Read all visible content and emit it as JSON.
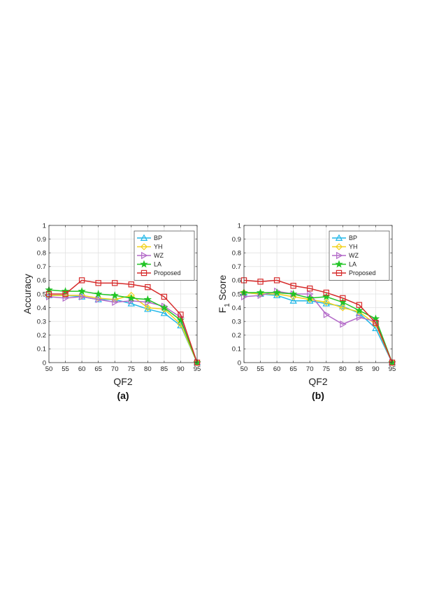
{
  "chart_data": [
    {
      "type": "line",
      "caption": "(a)",
      "xlabel": "QF2",
      "ylabel": "Accuracy",
      "x": [
        50,
        55,
        60,
        65,
        70,
        75,
        80,
        85,
        90,
        95
      ],
      "xticks": [
        "50",
        "55",
        "60",
        "65",
        "70",
        "75",
        "80",
        "85",
        "90",
        "95"
      ],
      "yticks": [
        "0",
        "0.1",
        "0.2",
        "0.3",
        "0.4",
        "0.5",
        "0.6",
        "0.7",
        "0.8",
        "0.9",
        "1"
      ],
      "xlim": [
        50,
        95
      ],
      "ylim": [
        0,
        1
      ],
      "grid": true,
      "legend_position": "top-right",
      "series": [
        {
          "name": "BP",
          "color": "#1fb6e8",
          "marker": "triangle-up",
          "values": [
            0.49,
            0.49,
            0.48,
            0.46,
            0.46,
            0.43,
            0.39,
            0.36,
            0.27,
            0.0
          ]
        },
        {
          "name": "YH",
          "color": "#f2d21b",
          "marker": "diamond",
          "values": [
            0.49,
            0.49,
            0.49,
            0.47,
            0.46,
            0.49,
            0.4,
            0.39,
            0.28,
            0.0
          ]
        },
        {
          "name": "WZ",
          "color": "#b36ac8",
          "marker": "triangle-right",
          "values": [
            0.48,
            0.47,
            0.48,
            0.46,
            0.44,
            0.45,
            0.44,
            0.41,
            0.33,
            0.0
          ]
        },
        {
          "name": "LA",
          "color": "#21c425",
          "marker": "star",
          "values": [
            0.53,
            0.52,
            0.52,
            0.5,
            0.49,
            0.47,
            0.46,
            0.4,
            0.31,
            0.0
          ]
        },
        {
          "name": "Proposed",
          "color": "#d62b2b",
          "marker": "square",
          "values": [
            0.5,
            0.5,
            0.6,
            0.58,
            0.58,
            0.57,
            0.55,
            0.48,
            0.35,
            0.0
          ]
        }
      ]
    },
    {
      "type": "line",
      "caption": "(b)",
      "xlabel": "QF2",
      "ylabel": "F",
      "ylabel_sub": "1",
      "ylabel_rest": " Score",
      "x": [
        50,
        55,
        60,
        65,
        70,
        75,
        80,
        85,
        90,
        95
      ],
      "xticks": [
        "50",
        "55",
        "60",
        "65",
        "70",
        "75",
        "80",
        "85",
        "90",
        "95"
      ],
      "yticks": [
        "0",
        "0.1",
        "0.2",
        "0.3",
        "0.4",
        "0.5",
        "0.6",
        "0.7",
        "0.8",
        "0.9",
        "1"
      ],
      "xlim": [
        50,
        95
      ],
      "ylim": [
        0,
        1
      ],
      "grid": true,
      "legend_position": "top-right",
      "series": [
        {
          "name": "BP",
          "color": "#1fb6e8",
          "marker": "triangle-up",
          "values": [
            0.51,
            0.5,
            0.49,
            0.45,
            0.45,
            0.43,
            0.41,
            0.36,
            0.25,
            0.0
          ]
        },
        {
          "name": "YH",
          "color": "#f2d21b",
          "marker": "diamond",
          "values": [
            0.51,
            0.5,
            0.5,
            0.48,
            0.46,
            0.44,
            0.4,
            0.37,
            0.28,
            0.0
          ]
        },
        {
          "name": "WZ",
          "color": "#b36ac8",
          "marker": "triangle-right",
          "values": [
            0.48,
            0.49,
            0.52,
            0.5,
            0.5,
            0.35,
            0.28,
            0.33,
            0.3,
            0.0
          ]
        },
        {
          "name": "LA",
          "color": "#21c425",
          "marker": "star",
          "values": [
            0.51,
            0.51,
            0.51,
            0.5,
            0.47,
            0.48,
            0.44,
            0.38,
            0.32,
            0.0
          ]
        },
        {
          "name": "Proposed",
          "color": "#d62b2b",
          "marker": "square",
          "values": [
            0.6,
            0.59,
            0.6,
            0.56,
            0.54,
            0.51,
            0.47,
            0.42,
            0.29,
            0.0
          ]
        }
      ]
    }
  ]
}
